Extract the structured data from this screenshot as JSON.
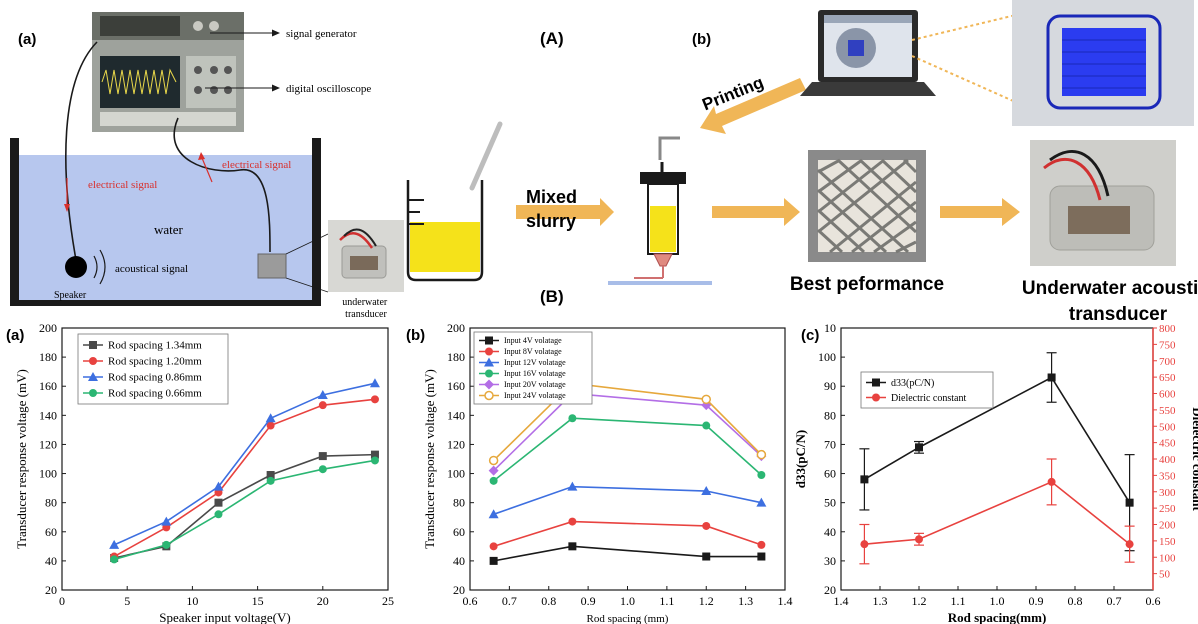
{
  "top_left": {
    "panel_label": "(a)",
    "signal_generator": "signal generator",
    "digital_oscilloscope": "digital oscilloscope",
    "electrical_signal_left": "electrical signal",
    "electrical_signal_right": "electrical signal",
    "water": "water",
    "acoustical_signal": "acoustical signal",
    "speaker": "Speaker",
    "underwater_transducer": "underwater\ntransducer"
  },
  "top_right": {
    "panel_label_A": "(A)",
    "panel_label_b": "(b)",
    "printing": "Printing",
    "mixed_slurry": "Mixed\nslurry",
    "best_performance": "Best peformance",
    "underwater_acoustic_transducer": "Underwater acoustic\ntransducer",
    "panel_label_B": "(B)"
  },
  "colors": {
    "water": "#b7c7ee",
    "arrow_orange": "#f0b657",
    "slurry_yellow": "#f5e21a",
    "red_annotation": "#d9302c",
    "chart_black": "#1a1a1a",
    "chart_red": "#e8423f",
    "chart_blue": "#3d6fe0",
    "chart_green": "#2bb673",
    "chart_purple": "#b36ee6",
    "chart_orange": "#e6a83c"
  },
  "chart_data": [
    {
      "type": "line",
      "panel_label": "(a)",
      "xlabel": "Speaker input voltage(V)",
      "ylabel": "Transducer response voltage (mV)",
      "xlim": [
        0,
        25
      ],
      "ylim": [
        20,
        200
      ],
      "xticks": [
        0,
        5,
        10,
        15,
        20,
        25
      ],
      "yticks": [
        20,
        40,
        60,
        80,
        100,
        120,
        140,
        160,
        180,
        200
      ],
      "legend_position": "top-left",
      "x": [
        4,
        8,
        12,
        16,
        20,
        24
      ],
      "series": [
        {
          "name": "Rod spacing 1.34mm",
          "marker": "square",
          "color": "#4a4a4a",
          "values": [
            42,
            50,
            80,
            99,
            112,
            113
          ]
        },
        {
          "name": "Rod spacing 1.20mm",
          "marker": "circle",
          "color": "#e8423f",
          "values": [
            43,
            63,
            87,
            133,
            147,
            151
          ]
        },
        {
          "name": "Rod spacing 0.86mm",
          "marker": "triangle",
          "color": "#3d6fe0",
          "values": [
            51,
            67,
            91,
            138,
            154,
            162
          ]
        },
        {
          "name": "Rod spacing 0.66mm",
          "marker": "circle",
          "color": "#2bb673",
          "values": [
            41,
            51,
            72,
            95,
            103,
            109
          ]
        }
      ]
    },
    {
      "type": "line",
      "panel_label": "(b)",
      "xlabel": "Rod spacing (mm)",
      "ylabel": "Transducer response voltage (mV)",
      "xlim": [
        0.6,
        1.4
      ],
      "ylim": [
        20,
        200
      ],
      "xticks": [
        0.6,
        0.7,
        0.8,
        0.9,
        1.0,
        1.1,
        1.2,
        1.3,
        1.4
      ],
      "xtick_labels": [
        "0.6",
        "0.7",
        "0.8",
        "0.9",
        "1.0",
        "1.1",
        "1.2",
        "1.3",
        "1.4"
      ],
      "yticks": [
        20,
        40,
        60,
        80,
        100,
        120,
        140,
        160,
        180,
        200
      ],
      "legend_position": "top-left",
      "x": [
        0.66,
        0.86,
        1.2,
        1.34
      ],
      "series": [
        {
          "name": "Input 4V volatage",
          "marker": "square",
          "color": "#1a1a1a",
          "values": [
            40,
            50,
            43,
            43
          ]
        },
        {
          "name": "Input 8V volatage",
          "marker": "circle",
          "color": "#e8423f",
          "values": [
            50,
            67,
            64,
            51
          ]
        },
        {
          "name": "Input 12V volatage",
          "marker": "triangle",
          "color": "#3d6fe0",
          "values": [
            72,
            91,
            88,
            80
          ]
        },
        {
          "name": "Input 16V volatage",
          "marker": "circle",
          "color": "#2bb673",
          "values": [
            95,
            138,
            133,
            99
          ]
        },
        {
          "name": "Input 20V volatage",
          "marker": "diamond",
          "color": "#b36ee6",
          "values": [
            102,
            155,
            147,
            112
          ]
        },
        {
          "name": "Input 24V volatage",
          "marker": "open-circle",
          "color": "#e6a83c",
          "values": [
            109,
            162,
            151,
            113
          ]
        }
      ]
    },
    {
      "type": "line",
      "panel_label": "(c)",
      "xlabel": "Rod spacing(mm)",
      "ylabel": "d33(pC/N)",
      "ylabel_right": "Dielectric constant",
      "xlim": [
        1.4,
        0.6
      ],
      "x_reversed": true,
      "ylim": [
        20,
        110
      ],
      "ylim_right": [
        0,
        800
      ],
      "xticks": [
        1.4,
        1.3,
        1.2,
        1.1,
        1.0,
        0.9,
        0.8,
        0.7,
        0.6
      ],
      "xtick_labels": [
        "1.4",
        "1.3",
        "1.2",
        "1.1",
        "1.0",
        "0.9",
        "0.8",
        "0.7",
        "0.6"
      ],
      "yticks": [
        20,
        30,
        40,
        50,
        60,
        70,
        80,
        90,
        100
      ],
      "ytick_labels": [
        "20",
        "30",
        "40",
        "50",
        "60",
        "70",
        "80",
        "90",
        "100"
      ],
      "ytop_label": "10",
      "yticks_right": [
        50,
        100,
        150,
        200,
        250,
        300,
        350,
        400,
        450,
        500,
        550,
        600,
        650,
        700,
        750,
        800
      ],
      "legend_position": "top-left",
      "x": [
        1.34,
        1.2,
        0.86,
        0.66
      ],
      "series": [
        {
          "name": "d33(pC/N)",
          "axis": "left",
          "marker": "square",
          "color": "#1a1a1a",
          "values": [
            58,
            69,
            93,
            50
          ],
          "errors": [
            10.5,
            2,
            8.5,
            16.5
          ]
        },
        {
          "name": "Dielectric constant",
          "axis": "right",
          "marker": "circle",
          "color": "#e8423f",
          "values": [
            140,
            155,
            330,
            140
          ],
          "errors": [
            60,
            18,
            70,
            55
          ]
        }
      ]
    }
  ]
}
